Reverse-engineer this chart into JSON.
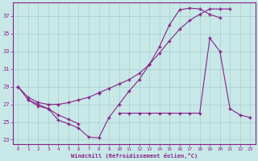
{
  "xlabel": "Windchill (Refroidissement éolien,°C)",
  "background_color": "#c8e8e8",
  "grid_color": "#a8cece",
  "line_color": "#882288",
  "xlim": [
    -0.5,
    23.5
  ],
  "ylim": [
    22.5,
    38.5
  ],
  "yticks": [
    23,
    25,
    27,
    29,
    31,
    33,
    35,
    37
  ],
  "xticks": [
    0,
    1,
    2,
    3,
    4,
    5,
    6,
    7,
    8,
    9,
    10,
    11,
    12,
    13,
    14,
    15,
    16,
    17,
    18,
    19,
    20,
    21,
    22,
    23
  ],
  "line1_x": [
    0,
    1,
    2,
    3,
    4,
    5,
    6,
    7,
    8,
    9,
    10,
    11,
    12,
    13,
    14,
    15,
    16,
    17,
    18,
    19,
    20
  ],
  "line1_y": [
    29.0,
    27.5,
    27.0,
    26.5,
    25.2,
    24.8,
    24.3,
    23.3,
    23.2,
    25.5,
    27.0,
    28.5,
    29.8,
    31.5,
    33.5,
    36.0,
    37.7,
    37.9,
    37.8,
    37.2,
    36.8
  ],
  "line2_x": [
    0,
    1,
    2,
    3,
    4,
    5,
    6,
    7,
    8,
    9,
    10,
    11,
    12,
    13,
    14,
    15,
    16,
    17,
    18,
    19,
    20,
    21
  ],
  "line2_y": [
    29.0,
    27.8,
    27.2,
    27.0,
    27.0,
    27.2,
    27.5,
    27.8,
    28.3,
    28.8,
    29.3,
    29.8,
    30.5,
    31.5,
    32.8,
    34.2,
    35.5,
    36.5,
    37.2,
    37.8,
    37.8,
    37.8
  ],
  "line3_x": [
    0,
    1,
    2,
    3,
    4,
    5,
    6,
    7,
    8,
    9,
    10,
    11,
    12,
    13,
    14,
    15,
    16,
    17,
    18,
    19,
    20,
    21,
    22,
    23
  ],
  "line3_y": [
    null,
    27.5,
    26.8,
    26.5,
    25.8,
    25.3,
    24.8,
    null,
    28.2,
    null,
    26.0,
    26.0,
    26.0,
    26.0,
    26.0,
    26.0,
    26.0,
    26.0,
    26.0,
    34.5,
    33.0,
    26.5,
    25.8,
    25.5
  ]
}
